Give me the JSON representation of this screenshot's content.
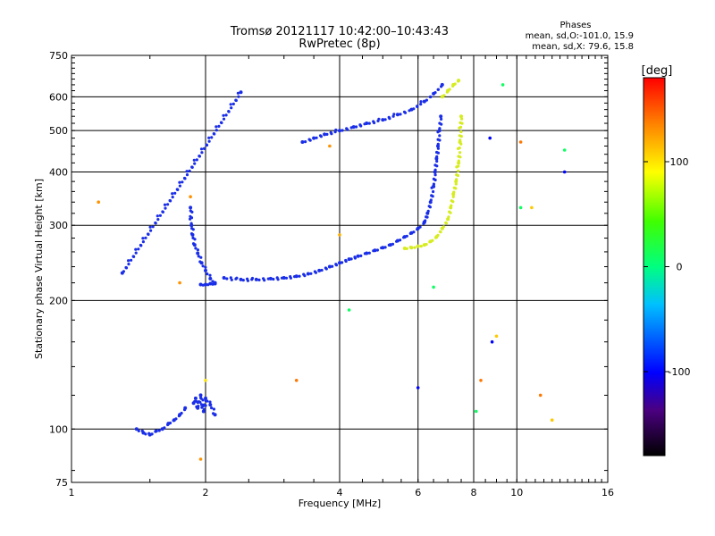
{
  "chart_data": {
    "type": "scatter",
    "title": "Tromsø 20121117 10:42:00–10:43:43",
    "subtitle": "RwPretec (8p)",
    "xlabel": "Frequency [MHz]",
    "ylabel": "Stationary phase Virtual Height [km]",
    "x_scale": "log",
    "y_scale": "log",
    "xlim": [
      1,
      16
    ],
    "ylim": [
      75,
      750
    ],
    "x_ticks": [
      1,
      2,
      4,
      6,
      8,
      10,
      16
    ],
    "y_ticks": [
      75,
      100,
      200,
      300,
      400,
      500,
      600,
      750
    ],
    "grid": true,
    "phases_box": {
      "title": "Phases",
      "line1": "mean, sd,O:-101.0, 15.9",
      "line2": "mean, sd,X:  79.6, 15.8"
    },
    "colorbar": {
      "label": "[deg]",
      "ticks": [
        "100",
        "0",
        "-100"
      ],
      "tick_values": [
        100,
        0,
        -100
      ],
      "range": [
        -180,
        180
      ],
      "palette": "rainbow"
    },
    "series": [
      {
        "mode": "O",
        "phase_deg": -101,
        "color": "#1a2ee8",
        "traces": [
          {
            "x": [
              1.4,
              1.45,
              1.5,
              1.55,
              1.6,
              1.65,
              1.7,
              1.75,
              1.8
            ],
            "y": [
              100,
              98,
              97,
              99,
              100,
              103,
              105,
              108,
              112
            ]
          },
          {
            "x": [
              1.88,
              1.9,
              1.92,
              1.95,
              1.98,
              2.0,
              2.05,
              2.1
            ],
            "y": [
              115,
              118,
              112,
              120,
              110,
              118,
              114,
              108
            ]
          },
          {
            "x": [
              1.85,
              1.86,
              1.87,
              1.89,
              1.92,
              1.96,
              2.0,
              2.05,
              2.1
            ],
            "y": [
              330,
              300,
              285,
              270,
              258,
              245,
              235,
              225,
              220
            ]
          },
          {
            "x": [
              1.95,
              2.0,
              2.05,
              2.1
            ],
            "y": [
              218,
              218,
              219,
              219
            ]
          },
          {
            "x": [
              2.2,
              2.4,
              2.6,
              2.8,
              3.0,
              3.2,
              3.4,
              3.6,
              3.8,
              4.0,
              4.2,
              4.4,
              4.6,
              4.8,
              5.0,
              5.2,
              5.4,
              5.6,
              5.8,
              6.0,
              6.2
            ],
            "y": [
              226,
              224,
              224,
              225,
              226,
              228,
              231,
              235,
              240,
              245,
              250,
              254,
              258,
              262,
              266,
              270,
              276,
              282,
              288,
              295,
              305
            ]
          },
          {
            "x": [
              6.2,
              6.3,
              6.4,
              6.5,
              6.55,
              6.6,
              6.65,
              6.7,
              6.75
            ],
            "y": [
              305,
              320,
              340,
              370,
              400,
              430,
              460,
              500,
              540
            ]
          },
          {
            "x": [
              3.3,
              3.5,
              3.7,
              4.0,
              4.3,
              4.6,
              5.0,
              5.4,
              5.8,
              6.2,
              6.5,
              6.8
            ],
            "y": [
              470,
              480,
              490,
              500,
              510,
              520,
              530,
              545,
              560,
              585,
              610,
              640
            ]
          },
          {
            "x": [
              1.3,
              2.4
            ],
            "y": [
              232,
              615
            ]
          }
        ]
      },
      {
        "mode": "X",
        "phase_deg": 80,
        "color": "#d6ec1e",
        "traces": [
          {
            "x": [
              5.6,
              5.8,
              6.0,
              6.2,
              6.4,
              6.6,
              6.8,
              7.0,
              7.1,
              7.2,
              7.3,
              7.4,
              7.45,
              7.5
            ],
            "y": [
              265,
              266,
              268,
              270,
              275,
              282,
              295,
              310,
              330,
              355,
              380,
              420,
              470,
              540
            ]
          },
          {
            "x": [
              6.8,
              7.0,
              7.2,
              7.4
            ],
            "y": [
              600,
              620,
              640,
              655
            ]
          }
        ]
      }
    ],
    "scattered_points": [
      {
        "x": 1.15,
        "y": 340,
        "phase_deg": 130
      },
      {
        "x": 1.85,
        "y": 350,
        "phase_deg": 130
      },
      {
        "x": 1.75,
        "y": 220,
        "phase_deg": 130
      },
      {
        "x": 1.95,
        "y": 85,
        "phase_deg": 130
      },
      {
        "x": 2.0,
        "y": 130,
        "phase_deg": 100
      },
      {
        "x": 3.2,
        "y": 130,
        "phase_deg": 140
      },
      {
        "x": 3.8,
        "y": 460,
        "phase_deg": 130
      },
      {
        "x": 4.0,
        "y": 285,
        "phase_deg": 120
      },
      {
        "x": 4.2,
        "y": 190,
        "phase_deg": 10
      },
      {
        "x": 6.0,
        "y": 125,
        "phase_deg": -100
      },
      {
        "x": 6.5,
        "y": 215,
        "phase_deg": 10
      },
      {
        "x": 8.1,
        "y": 110,
        "phase_deg": 10
      },
      {
        "x": 8.3,
        "y": 130,
        "phase_deg": 140
      },
      {
        "x": 8.7,
        "y": 480,
        "phase_deg": -100
      },
      {
        "x": 8.8,
        "y": 160,
        "phase_deg": -100
      },
      {
        "x": 9.0,
        "y": 165,
        "phase_deg": 110
      },
      {
        "x": 9.3,
        "y": 640,
        "phase_deg": 10
      },
      {
        "x": 10.2,
        "y": 470,
        "phase_deg": 140
      },
      {
        "x": 10.2,
        "y": 330,
        "phase_deg": 10
      },
      {
        "x": 10.8,
        "y": 330,
        "phase_deg": 110
      },
      {
        "x": 11.3,
        "y": 120,
        "phase_deg": 140
      },
      {
        "x": 12.0,
        "y": 105,
        "phase_deg": 110
      },
      {
        "x": 12.8,
        "y": 450,
        "phase_deg": 10
      },
      {
        "x": 12.8,
        "y": 400,
        "phase_deg": -100
      }
    ]
  }
}
